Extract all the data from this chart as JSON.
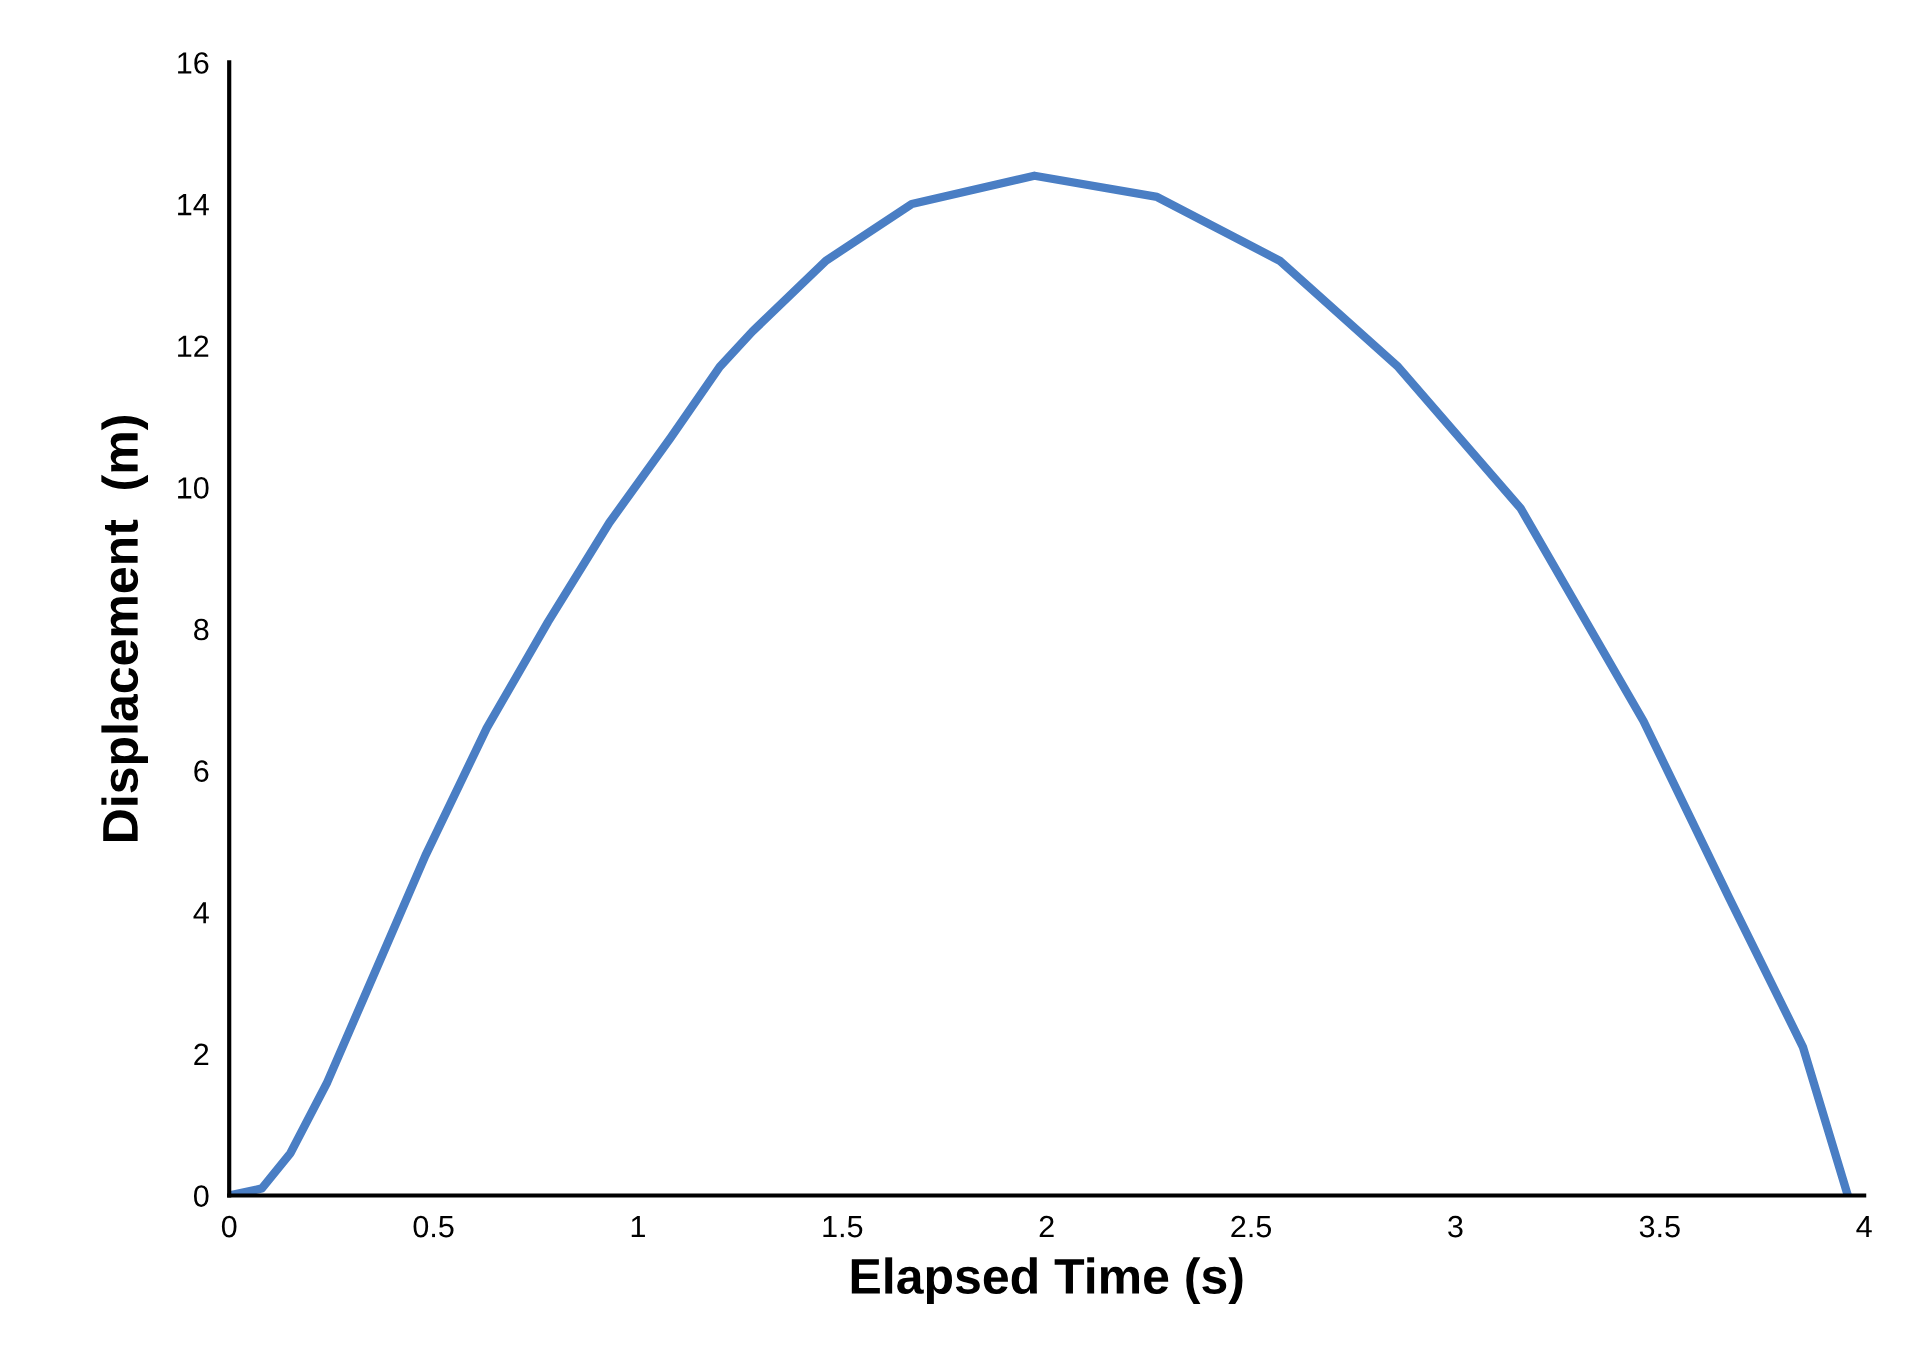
{
  "chart_data": {
    "type": "line",
    "xlabel": "Elapsed Time (s)",
    "ylabel": "Displacement  (m)",
    "series": [
      {
        "color": "#4a7ec4",
        "x": [
          0,
          0.08,
          0.15,
          0.24,
          0.33,
          0.48,
          0.63,
          0.78,
          0.93,
          1.08,
          1.2,
          1.28,
          1.46,
          1.67,
          1.97,
          2.27,
          2.57,
          2.86,
          3.16,
          3.46,
          3.67,
          3.85,
          3.96
        ],
        "values": [
          0,
          0.1,
          0.6,
          1.6,
          2.8,
          4.8,
          6.6,
          8.1,
          9.5,
          10.7,
          11.7,
          12.2,
          13.2,
          14.0,
          14.4,
          14.1,
          13.2,
          11.7,
          9.7,
          6.7,
          4.2,
          2.1,
          0
        ]
      }
    ],
    "xlim": [
      0,
      4
    ],
    "xticks": [
      0,
      0.5,
      1,
      1.5,
      2,
      2.5,
      3,
      3.5,
      4
    ],
    "ylim": [
      0,
      16
    ],
    "yticks": [
      0,
      2,
      4,
      6,
      8,
      10,
      12,
      14,
      16
    ],
    "grid": false,
    "legend": false,
    "marker": "none",
    "line_style": "solid"
  }
}
